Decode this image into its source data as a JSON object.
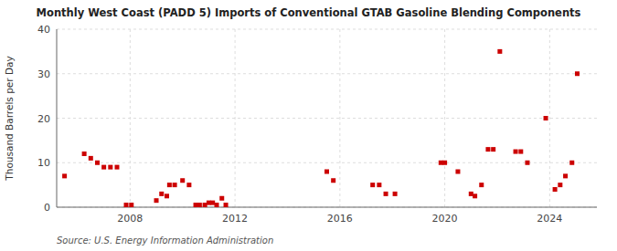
{
  "chart_data": {
    "type": "scatter",
    "title": "Monthly West Coast (PADD 5) Imports of Conventional GTAB Gasoline Blending Components",
    "ylabel": "Thousand Barrels per Day",
    "source": "Source: U.S. Energy Information Administration",
    "color": "#cc0000",
    "marker": "square",
    "grid": true,
    "xlim": [
      2005.2,
      2025.8
    ],
    "xticks": [
      2008,
      2012,
      2016,
      2020,
      2024
    ],
    "ylim": [
      0,
      40
    ],
    "yticks": [
      0,
      10,
      20,
      30,
      40
    ],
    "x": [
      2005.5,
      2006.25,
      2006.5,
      2006.75,
      2007.0,
      2007.25,
      2007.5,
      2007.85,
      2008.05,
      2009.0,
      2009.2,
      2009.4,
      2009.5,
      2009.7,
      2010.0,
      2010.25,
      2010.5,
      2010.65,
      2010.85,
      2011.0,
      2011.15,
      2011.3,
      2011.5,
      2011.65,
      2015.5,
      2015.75,
      2017.25,
      2017.5,
      2017.75,
      2018.1,
      2019.85,
      2020.0,
      2020.5,
      2021.0,
      2021.15,
      2021.4,
      2021.65,
      2021.85,
      2022.1,
      2022.7,
      2022.9,
      2023.15,
      2023.85,
      2024.2,
      2024.4,
      2024.6,
      2024.85,
      2025.05
    ],
    "values": [
      7,
      12,
      11,
      10,
      9,
      9,
      9,
      0.5,
      0.5,
      1.5,
      3,
      2.5,
      5,
      5,
      6,
      5,
      0.5,
      0.5,
      0.5,
      1,
      1,
      0.5,
      2,
      0.5,
      8,
      6,
      5,
      5,
      3,
      3,
      10,
      10,
      8,
      3,
      2.5,
      5,
      13,
      13,
      35,
      12.5,
      12.5,
      10,
      20,
      4,
      5,
      7,
      10,
      30
    ]
  }
}
